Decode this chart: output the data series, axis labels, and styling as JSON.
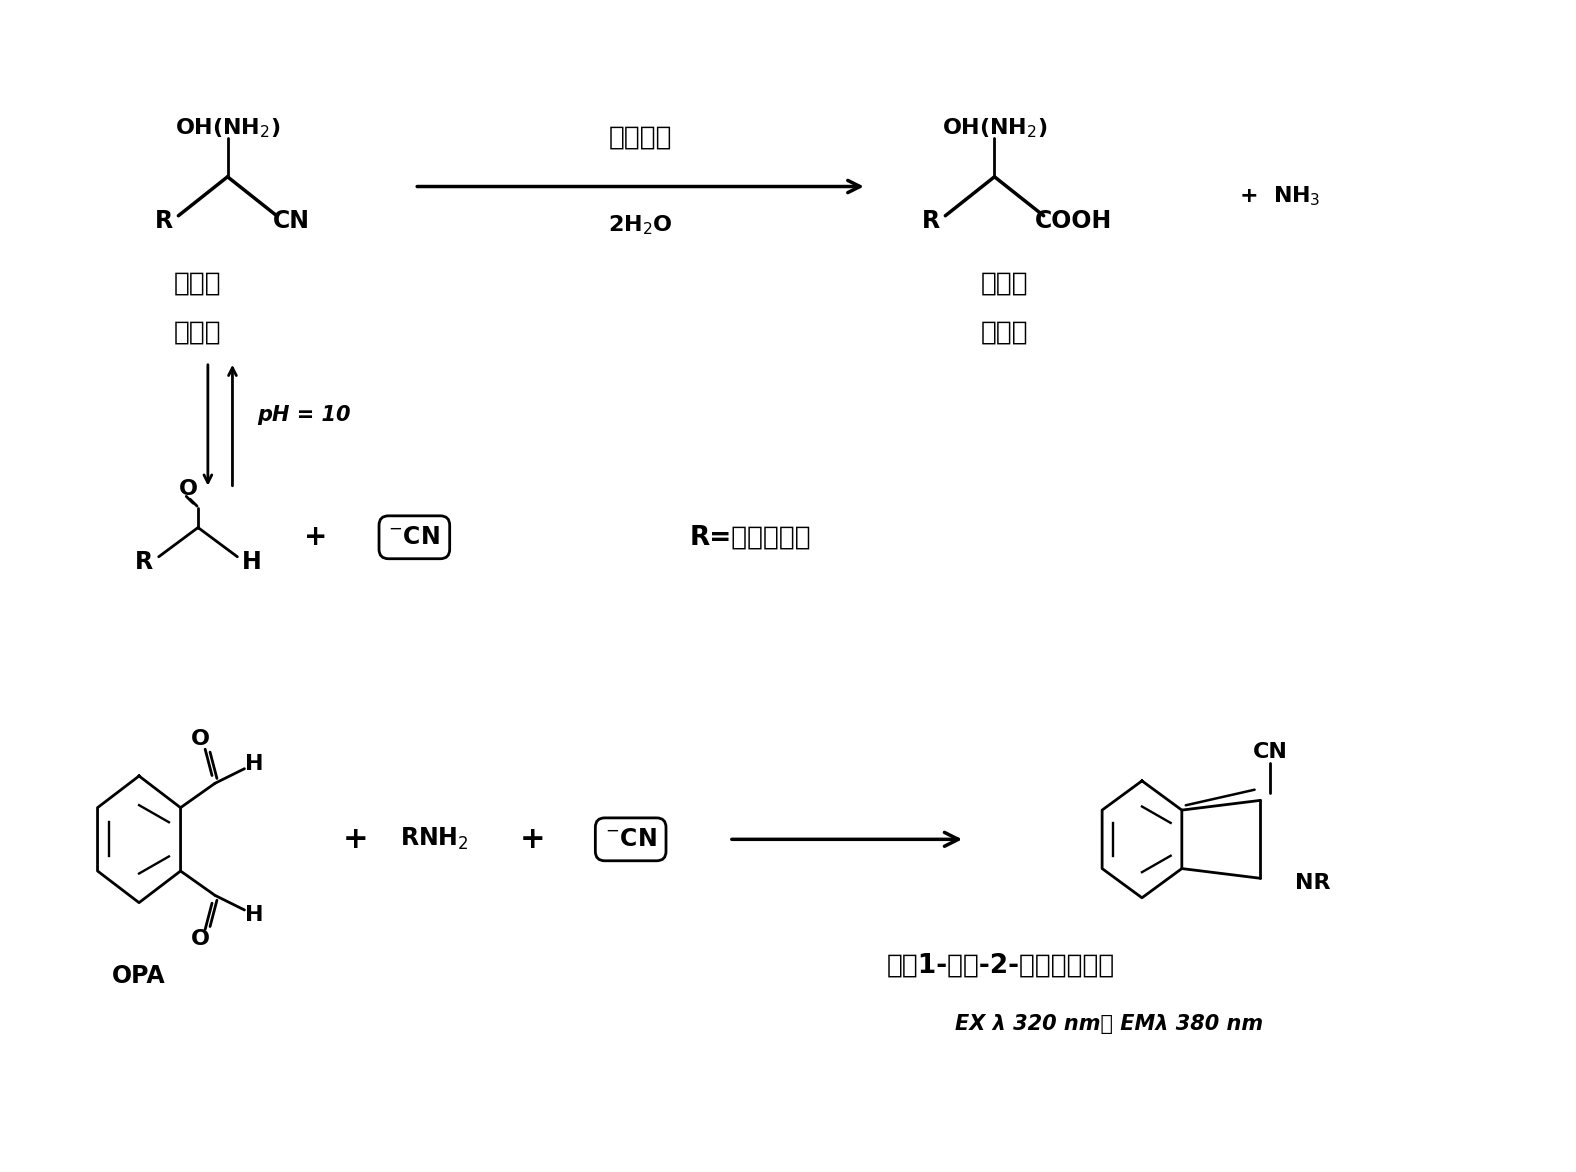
{
  "bg_color": "#ffffff",
  "figsize": [
    15.76,
    11.72
  ],
  "dpi": 100,
  "font_path": "NotoSansCJK",
  "top": {
    "arrow_top": "腼水解酶",
    "arrow_bot": "2H₂O",
    "react_cn1": "羟基脻",
    "react_cn2": "氨基脻",
    "prod_cn1": "羟基酸",
    "prod_cn2": "氨基酸",
    "plus_nh3": "+ NH₃"
  },
  "middle": {
    "ph": "pH = 10",
    "remark": "R=烷基，芳基"
  },
  "bottom": {
    "opa": "OPA",
    "caption1": "荧光1-氰基-2-取代苯异唷咀",
    "caption2_bold": "EX λ 320 nm， EMλ 380 nm"
  }
}
